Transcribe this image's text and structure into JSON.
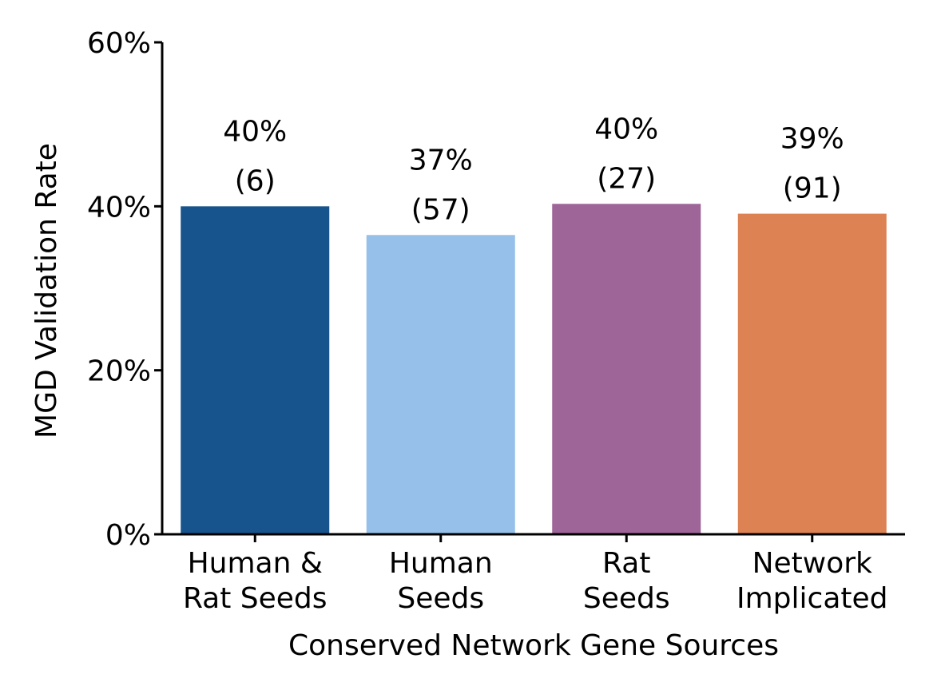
{
  "chart_data": {
    "type": "bar",
    "xlabel": "Conserved Network Gene Sources",
    "ylabel": "MGD Validation Rate",
    "ylim": [
      0,
      60
    ],
    "yticks": [
      0,
      20,
      40,
      60
    ],
    "ytick_labels": [
      "0%",
      "20%",
      "40%",
      "60%"
    ],
    "grid": false,
    "categories": [
      [
        "Human &",
        "Rat Seeds"
      ],
      [
        "Human",
        "Seeds"
      ],
      [
        "Rat",
        "Seeds"
      ],
      [
        "Network",
        "Implicated"
      ]
    ],
    "values": [
      40,
      36.5,
      40.3,
      39.1
    ],
    "value_labels": [
      "40%",
      "37%",
      "40%",
      "39%"
    ],
    "count_labels": [
      "(6)",
      "(57)",
      "(27)",
      "(91)"
    ],
    "colors": [
      "#17538c",
      "#96c0ea",
      "#9e6598",
      "#dc8253"
    ]
  }
}
